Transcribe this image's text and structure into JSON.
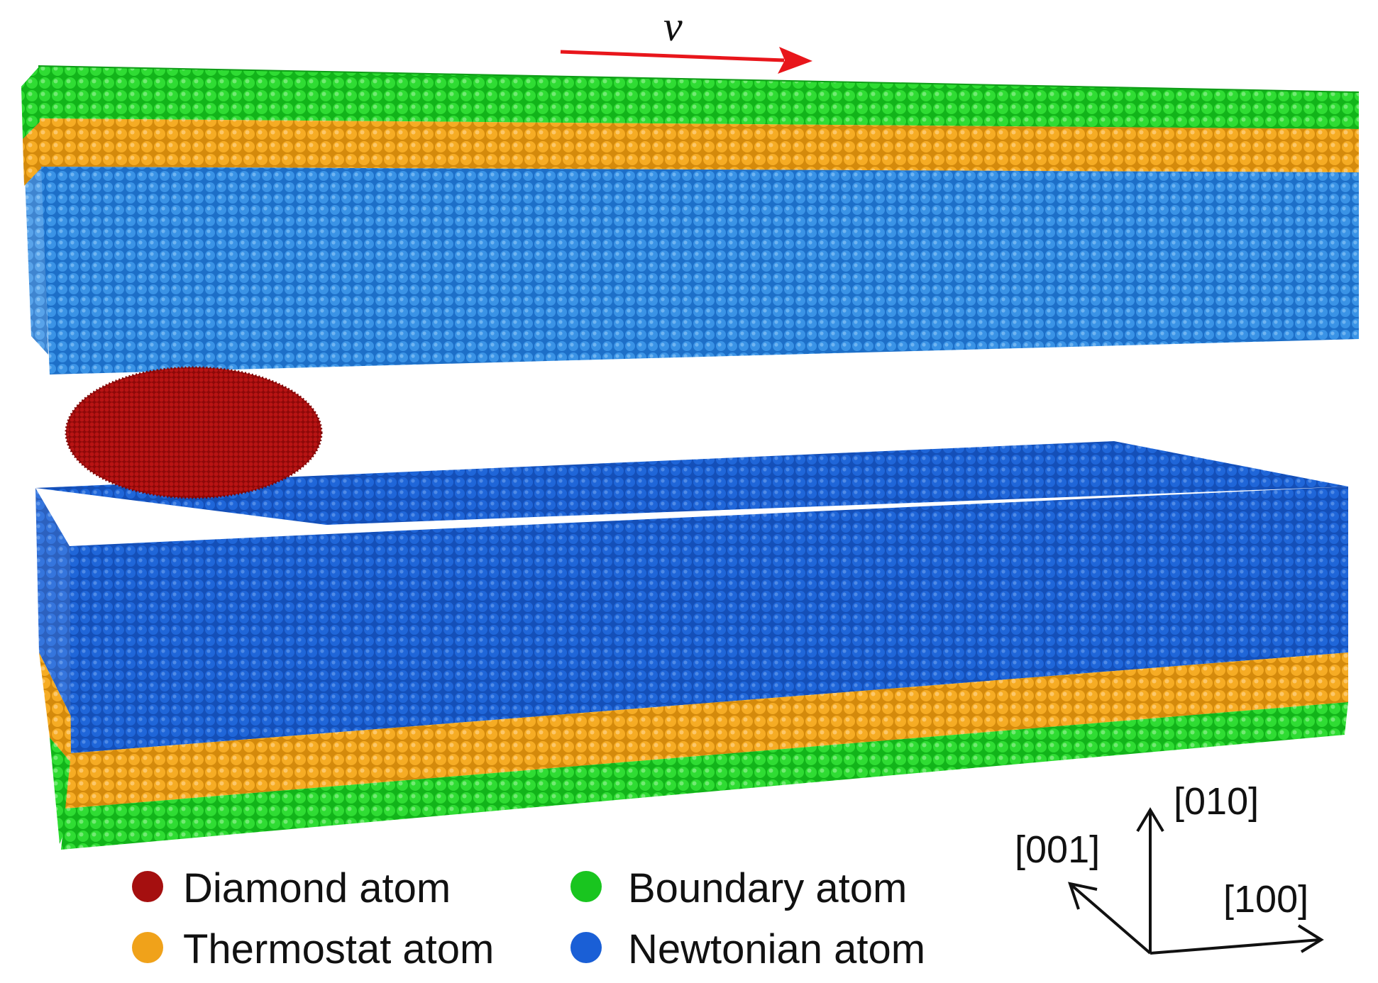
{
  "velocity_label": "v",
  "legend": {
    "items": [
      {
        "label": "Diamond atom",
        "color": "#a50f0f"
      },
      {
        "label": "Boundary atom",
        "color": "#19c51f"
      },
      {
        "label": "Thermostat atom",
        "color": "#f0a21a"
      },
      {
        "label": "Newtonian atom",
        "color": "#1a5fd6"
      }
    ]
  },
  "axes": {
    "y_label": "[010]",
    "z_label": "[001]",
    "x_label": "[100]"
  },
  "colors": {
    "diamond": "#a50f0f",
    "boundary": "#19c51f",
    "thermostat": "#f0a21a",
    "newtonian_upper": "#2a86dc",
    "newtonian_lower": "#1a5fd6",
    "arrow": "#e8161b"
  }
}
